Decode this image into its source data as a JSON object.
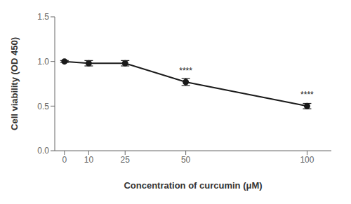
{
  "chart_data": {
    "type": "line",
    "x": [
      0,
      10,
      25,
      50,
      100
    ],
    "values": [
      1.0,
      0.98,
      0.98,
      0.77,
      0.5
    ],
    "yerr": [
      0.01,
      0.03,
      0.03,
      0.04,
      0.03
    ],
    "xlabel": "Concentration of curcumin (μM)",
    "ylabel": "Cell viability (OD 450)",
    "xlim": [
      -4,
      110
    ],
    "xticks": [
      0,
      10,
      25,
      50,
      100
    ],
    "ylim": [
      0.0,
      1.5
    ],
    "yticks": [
      {
        "value": 0,
        "label": "0.0"
      },
      0.5,
      {
        "value": 1,
        "label": "1.0"
      },
      1.5
    ],
    "color": "#1a1a1a",
    "marker": "circle",
    "grid": false,
    "annotations": [
      {
        "x": 50,
        "y": 0.825,
        "text": "****"
      },
      {
        "x": 100,
        "y": 0.555,
        "text": "****"
      }
    ]
  }
}
